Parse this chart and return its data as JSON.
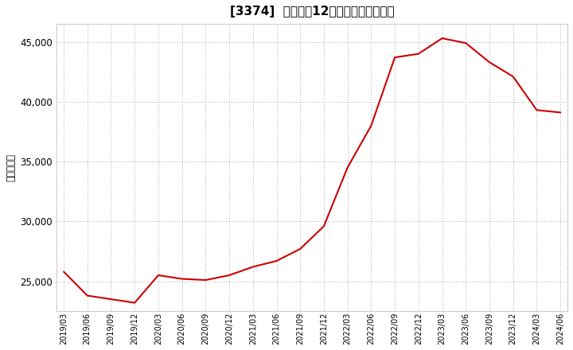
{
  "title": "[3374]  売上高の12か月移動合計の推移",
  "ylabel": "（百万円）",
  "line_color": "#cc0000",
  "background_color": "#ffffff",
  "plot_bg_color": "#ffffff",
  "grid_color": "#aaaaaa",
  "ylim": [
    22500,
    46500
  ],
  "yticks": [
    25000,
    30000,
    35000,
    40000,
    45000
  ],
  "dates": [
    "2019/03",
    "2019/06",
    "2019/09",
    "2019/12",
    "2020/03",
    "2020/06",
    "2020/09",
    "2020/12",
    "2021/03",
    "2021/06",
    "2021/09",
    "2021/12",
    "2022/03",
    "2022/06",
    "2022/09",
    "2022/12",
    "2023/03",
    "2023/06",
    "2023/09",
    "2023/12",
    "2024/03",
    "2024/06"
  ],
  "values": [
    25800,
    23800,
    23500,
    23200,
    25500,
    25200,
    25100,
    25500,
    26200,
    26700,
    27700,
    29600,
    34500,
    38000,
    43700,
    44000,
    45300,
    44900,
    43300,
    42100,
    39300,
    39100
  ],
  "xtick_labels": [
    "2019/03",
    "2019/06",
    "2019/09",
    "2019/12",
    "2020/03",
    "2020/06",
    "2020/09",
    "2020/12",
    "2021/03",
    "2021/06",
    "2021/09",
    "2021/12",
    "2022/03",
    "2022/06",
    "2022/09",
    "2022/12",
    "2023/03",
    "2023/06",
    "2023/09",
    "2023/12",
    "2024/03",
    "2024/06"
  ]
}
